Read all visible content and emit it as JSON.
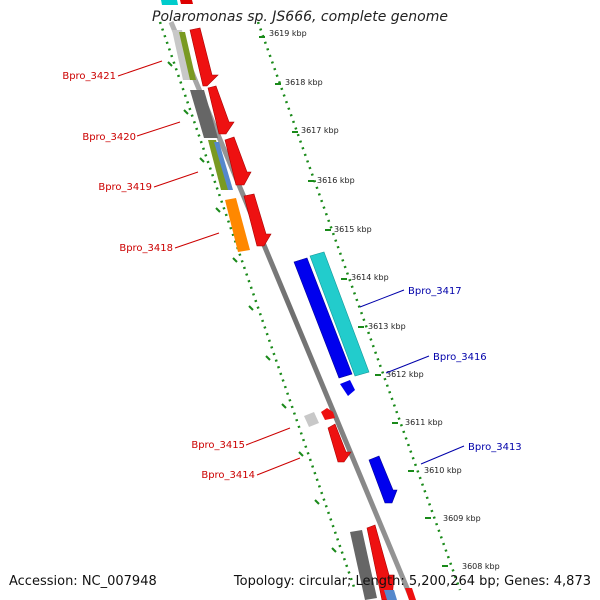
{
  "title": "Polaromonas sp. JS666, complete genome",
  "footer": {
    "accession": "Accession: NC_007948",
    "topology": "Topology: circular; Length: 5,200,264 bp; Genes: 4,873"
  },
  "ticks": [
    {
      "label": "3619 kbp"
    },
    {
      "label": "3618 kbp"
    },
    {
      "label": "3617 kbp"
    },
    {
      "label": "3616 kbp"
    },
    {
      "label": "3615 kbp"
    },
    {
      "label": "3614 kbp"
    },
    {
      "label": "3613 kbp"
    },
    {
      "label": "3612 kbp"
    },
    {
      "label": "3611 kbp"
    },
    {
      "label": "3610 kbp"
    },
    {
      "label": "3609 kbp"
    },
    {
      "label": "3608 kbp"
    }
  ],
  "gene_labels": {
    "reverse": [
      "Bpro_3421",
      "Bpro_3420",
      "Bpro_3419",
      "Bpro_3418",
      "Bpro_3415",
      "Bpro_3414"
    ],
    "forward": [
      "Bpro_3417",
      "Bpro_3416",
      "Bpro_3413"
    ]
  },
  "colors": {
    "reverse_label": "#cc0000",
    "forward_label": "#0000aa",
    "backbone": "#888888",
    "dots": "#1a8a1a"
  }
}
